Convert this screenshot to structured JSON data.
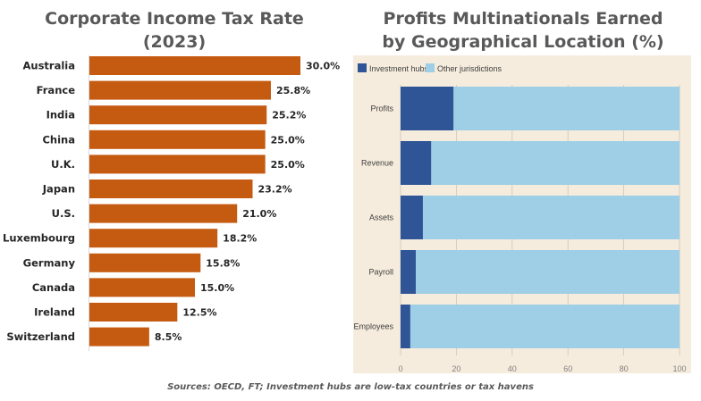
{
  "charts": {
    "left_title_line1": "Corporate Income Tax Rate",
    "left_title_line2": "(2023)",
    "right_title_line1": "Profits Multinationals Earned",
    "right_title_line2": "by Geographical Location (%)",
    "sources": "Sources: OECD, FT; Investment hubs are low-tax countries or tax havens"
  },
  "colors": {
    "bar": "#c55a11",
    "investment_hubs": "#2f5597",
    "other_jurisdictions": "#9ecfe7",
    "panel_bg": "#f6ecdd",
    "label_text": "#262626",
    "axis_text": "#7f7f7f"
  },
  "chart_data": [
    {
      "type": "bar",
      "orientation": "horizontal",
      "title": "Corporate Income Tax Rate (2023)",
      "categories": [
        "Australia",
        "France",
        "India",
        "China",
        "U.K.",
        "Japan",
        "U.S.",
        "Luxembourg",
        "Germany",
        "Canada",
        "Ireland",
        "Switzerland"
      ],
      "values": [
        30.0,
        25.8,
        25.2,
        25.0,
        25.0,
        23.2,
        21.0,
        18.2,
        15.8,
        15.0,
        12.5,
        8.5
      ],
      "value_labels": [
        "30.0%",
        "25.8%",
        "25.2%",
        "25.0%",
        "25.0%",
        "23.2%",
        "21.0%",
        "18.2%",
        "15.8%",
        "15.0%",
        "12.5%",
        "8.5%"
      ],
      "xlim": [
        0,
        30
      ]
    },
    {
      "type": "bar",
      "orientation": "horizontal",
      "stacked": true,
      "title": "Profits Multinationals Earned by Geographical Location (%)",
      "categories": [
        "Profits",
        "Revenue",
        "Assets",
        "Payroll",
        "Employees"
      ],
      "series": [
        {
          "name": "Investment hubs",
          "values": [
            19,
            11,
            8,
            5.5,
            3.5
          ]
        },
        {
          "name": "Other jurisdictions",
          "values": [
            81,
            89,
            92,
            94.5,
            96.5
          ]
        }
      ],
      "xlim": [
        0,
        100
      ],
      "xticks": [
        "0",
        "20",
        "40",
        "60",
        "80",
        "100"
      ],
      "legend": "top-left"
    }
  ]
}
